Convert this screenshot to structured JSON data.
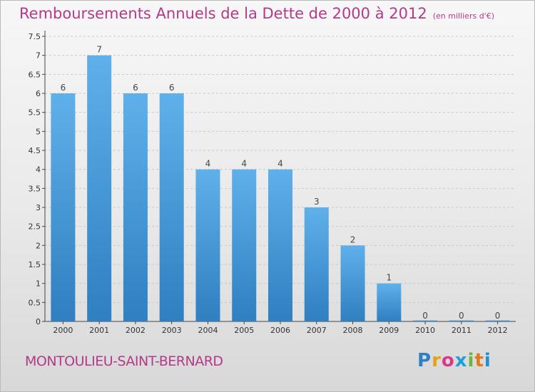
{
  "header": {
    "title": "Remboursements Annuels de la Dette de 2000 à 2012",
    "unit": "(en milliers d'€)"
  },
  "footer": {
    "commune": "MONTOULIEU-SAINT-BERNARD",
    "logo_letters": [
      "P",
      "r",
      "o",
      "x",
      "i",
      "t",
      "i"
    ],
    "logo_colors": [
      "#2f7fc6",
      "#e5a11a",
      "#d43a8a",
      "#1f9fd6",
      "#6cb33f",
      "#e07a1c",
      "#1f8fd6"
    ]
  },
  "colors": {
    "bar_light": "#5fb0ea",
    "bar_dark": "#2f7fc1",
    "title": "#b23a8a",
    "axis": "#444444",
    "grid": "#c9c9c9"
  },
  "chart_data": {
    "type": "bar",
    "categories": [
      "2000",
      "2001",
      "2002",
      "2003",
      "2004",
      "2005",
      "2006",
      "2007",
      "2008",
      "2009",
      "2010",
      "2011",
      "2012"
    ],
    "values": [
      6,
      7,
      6,
      6,
      4,
      4,
      4,
      3,
      2,
      1,
      0,
      0,
      0
    ],
    "data_labels": [
      "6",
      "7",
      "6",
      "6",
      "4",
      "4",
      "4",
      "3",
      "2",
      "1",
      "0",
      "0",
      "0"
    ],
    "y_ticks": [
      "0",
      "0.5",
      "1",
      "1.5",
      "2",
      "2.5",
      "3",
      "3.5",
      "4",
      "4.5",
      "5",
      "5.5",
      "6",
      "6.5",
      "7",
      "7.5"
    ],
    "ylim": [
      0,
      7.5
    ],
    "title": "Remboursements Annuels de la Dette de 2000 à 2012",
    "xlabel": "",
    "ylabel": "",
    "grid": true
  }
}
